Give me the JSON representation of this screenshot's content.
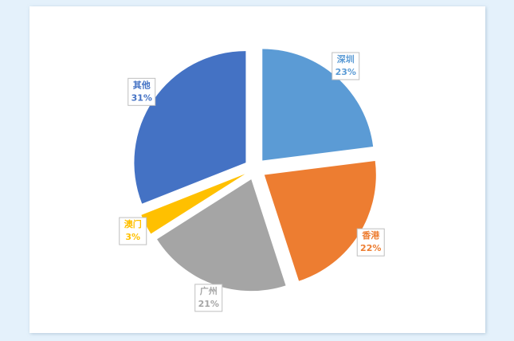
{
  "chart_data": {
    "type": "pie",
    "categories": [
      "深圳",
      "香港",
      "广州",
      "澳门",
      "其他"
    ],
    "values": [
      23,
      22,
      21,
      3,
      31
    ],
    "value_labels": [
      "23%",
      "22%",
      "21%",
      "3%",
      "31%"
    ],
    "colors": [
      "#5b9bd5",
      "#ed7d31",
      "#a5a5a5",
      "#ffc000",
      "#4472c4"
    ]
  }
}
